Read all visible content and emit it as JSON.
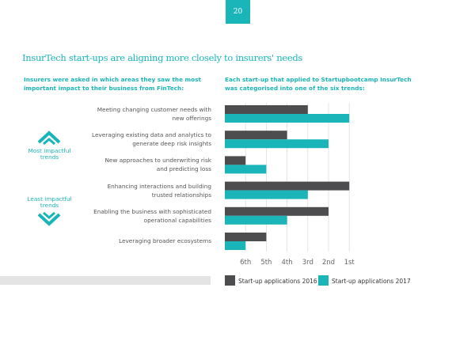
{
  "page_number": "20",
  "title": "InsurTech start-ups are aligning more closely to insurers' needs",
  "left_subtitle": "Insurers were asked in which areas they saw the most important impact to their business from FinTech:",
  "right_subtitle": "Each start-up that applied to Startupbootcamp InsurTech was categorised into one of the six trends:",
  "most_label": "Most impactful trends",
  "least_label": "Least impactful trends",
  "colors": {
    "accent": "#1ab5b8",
    "dark": "#4d4d4f"
  },
  "chart_data": {
    "type": "bar",
    "orientation": "horizontal",
    "categories": [
      [
        "Meeting changing customer needs with",
        "new offerings"
      ],
      [
        "Leveraging existing data and analytics to",
        "generate deep risk insights"
      ],
      [
        "New approaches to underwriting risk",
        "and predicting loss"
      ],
      [
        "Enhancing interactions and building",
        "trusted relationships"
      ],
      [
        "Enabling the business with sophisticated",
        "operational capabilities"
      ],
      [
        "Leveraging broader ecosystems"
      ]
    ],
    "series": [
      {
        "name": "Start-up applications 2016",
        "color": "#4d4d4f",
        "values": [
          4,
          3,
          1,
          6,
          5,
          2
        ]
      },
      {
        "name": "Start-up applications 2017",
        "color": "#1ab5b8",
        "values": [
          6,
          5,
          2,
          4,
          3,
          1
        ]
      }
    ],
    "tick_labels": [
      "6th",
      "5th",
      "4th",
      "3rd",
      "2nd",
      "1st"
    ],
    "xlim": [
      0,
      6
    ],
    "grid": true,
    "legend": "bottom"
  }
}
